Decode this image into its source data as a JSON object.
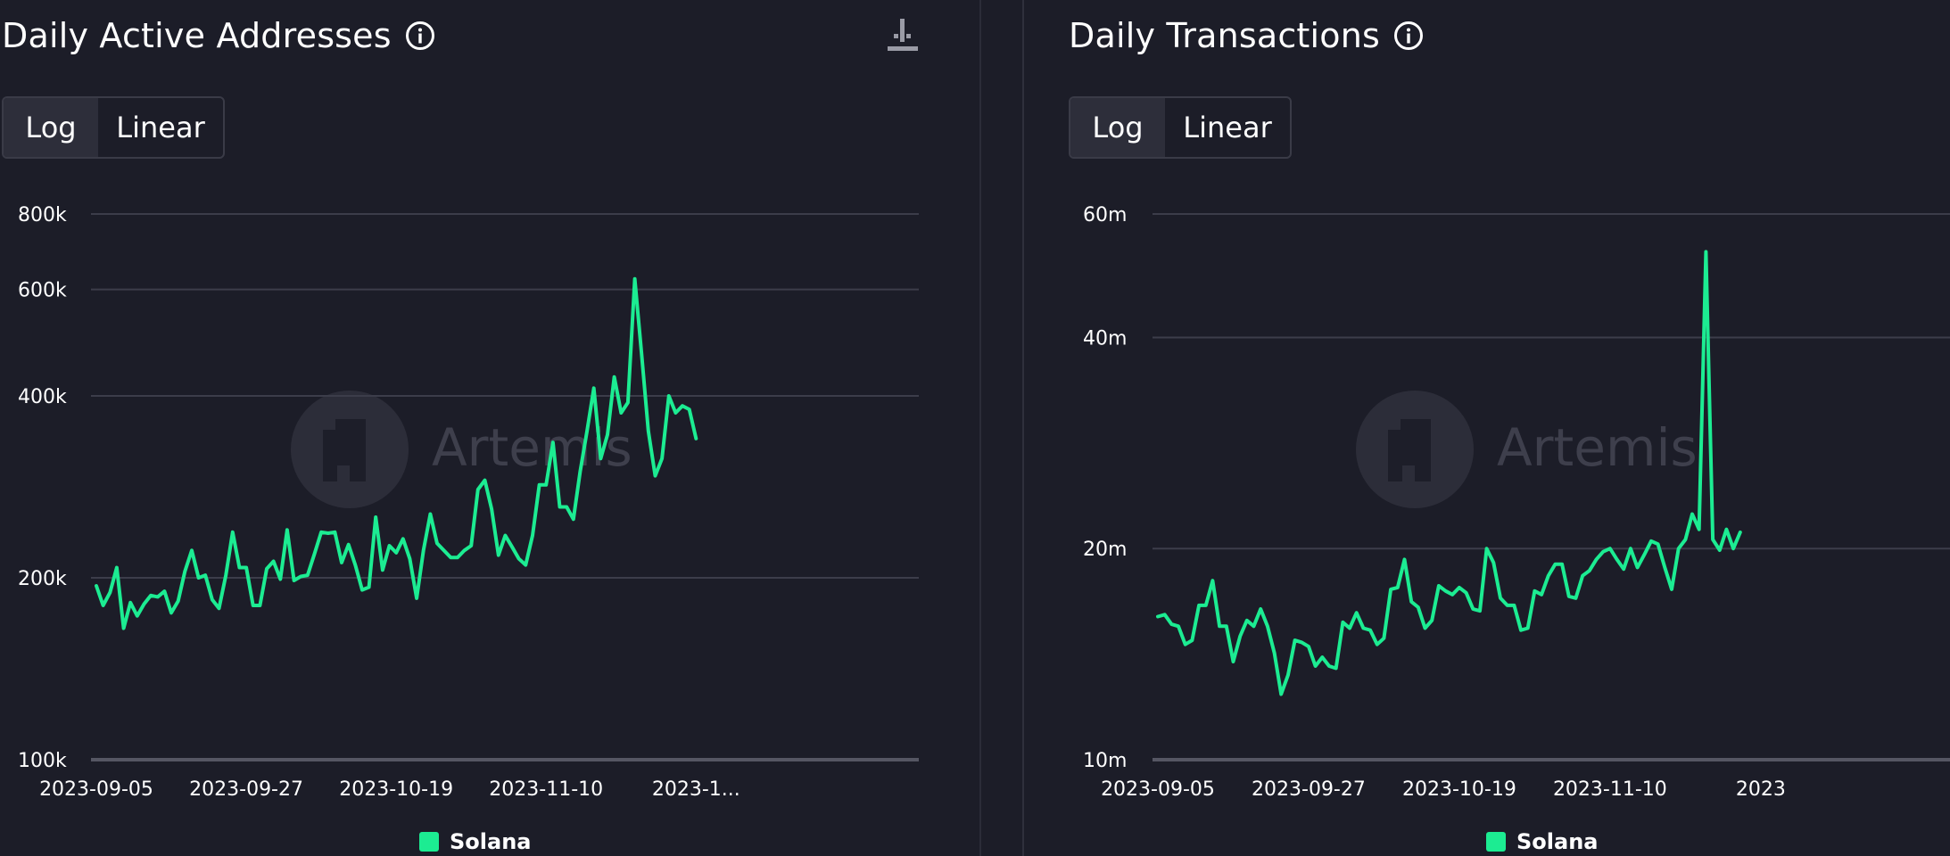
{
  "colors": {
    "background": "#1c1d28",
    "series": "#1cec92",
    "grid": "#3c3d4a",
    "axis": "#555663",
    "tick_text": "#ffffff",
    "watermark": "#4a4b58"
  },
  "icons": {
    "info": "info-circle-icon",
    "download": "download-icon"
  },
  "left": {
    "title": "Daily Active Addresses",
    "toggle": {
      "log": "Log",
      "linear": "Linear",
      "selected": "Log"
    },
    "watermark": "Artemis",
    "legend": "Solana"
  },
  "right": {
    "title": "Daily Transactions",
    "toggle": {
      "log": "Log",
      "linear": "Linear",
      "selected": "Log"
    },
    "watermark": "Artemis",
    "legend": "Solana"
  },
  "chart_data": [
    {
      "type": "line",
      "title": "Daily Active Addresses",
      "scale": "log",
      "grid": true,
      "legend_position": "bottom",
      "ylim": [
        100000,
        800000
      ],
      "y_ticks": [
        {
          "value": 800000,
          "label": "800k"
        },
        {
          "value": 600000,
          "label": "600k"
        },
        {
          "value": 400000,
          "label": "400k"
        },
        {
          "value": 200000,
          "label": "200k"
        },
        {
          "value": 100000,
          "label": "100k"
        }
      ],
      "x_ticks": [
        {
          "index": 0,
          "label": "2023-09-05"
        },
        {
          "index": 22,
          "label": "2023-09-27"
        },
        {
          "index": 44,
          "label": "2023-10-19"
        },
        {
          "index": 66,
          "label": "2023-11-10"
        },
        {
          "index": 88,
          "label": "2023-1..."
        }
      ],
      "series": [
        {
          "name": "Solana",
          "color": "#1cec92",
          "values": [
            194000,
            180000,
            189000,
            208000,
            165000,
            182000,
            173000,
            181000,
            187000,
            186000,
            190000,
            175000,
            183000,
            205000,
            222000,
            200000,
            202000,
            184000,
            178000,
            202000,
            238000,
            208000,
            208000,
            180000,
            180000,
            207000,
            213000,
            199000,
            240000,
            198000,
            201000,
            202000,
            219000,
            238000,
            237000,
            238000,
            212000,
            227000,
            210000,
            191000,
            193000,
            252000,
            206000,
            226000,
            220000,
            232000,
            215000,
            185000,
            222000,
            255000,
            228000,
            222000,
            216000,
            216000,
            222000,
            226000,
            280000,
            290000,
            260000,
            218000,
            235000,
            225000,
            215000,
            210000,
            235000,
            285000,
            285000,
            335000,
            262000,
            262000,
            250000,
            300000,
            350000,
            412000,
            315000,
            345000,
            430000,
            375000,
            390000,
            625000,
            470000,
            350000,
            295000,
            315000,
            400000,
            375000,
            385000,
            380000,
            340000
          ]
        }
      ]
    },
    {
      "type": "line",
      "title": "Daily Transactions",
      "scale": "log",
      "grid": true,
      "legend_position": "bottom",
      "ylim": [
        10000000,
        60000000
      ],
      "y_ticks": [
        {
          "value": 60000000,
          "label": "60m"
        },
        {
          "value": 40000000,
          "label": "40m"
        },
        {
          "value": 20000000,
          "label": "20m"
        },
        {
          "value": 10000000,
          "label": "10m"
        }
      ],
      "x_ticks": [
        {
          "index": 0,
          "label": "2023-09-05"
        },
        {
          "index": 22,
          "label": "2023-09-27"
        },
        {
          "index": 44,
          "label": "2023-10-19"
        },
        {
          "index": 66,
          "label": "2023-11-10"
        },
        {
          "index": 88,
          "label": "2023"
        }
      ],
      "series": [
        {
          "name": "Solana",
          "color": "#1cec92",
          "values": [
            16000000,
            16100000,
            15600000,
            15500000,
            14600000,
            14800000,
            16600000,
            16600000,
            18000000,
            15500000,
            15500000,
            13800000,
            15000000,
            15800000,
            15500000,
            16400000,
            15500000,
            14200000,
            12400000,
            13200000,
            14800000,
            14700000,
            14500000,
            13600000,
            14000000,
            13600000,
            13500000,
            15700000,
            15400000,
            16200000,
            15400000,
            15300000,
            14600000,
            14900000,
            17500000,
            17600000,
            19300000,
            16800000,
            16500000,
            15400000,
            15800000,
            17700000,
            17400000,
            17200000,
            17600000,
            17300000,
            16400000,
            16300000,
            20000000,
            19100000,
            17000000,
            16600000,
            16600000,
            15300000,
            15400000,
            17400000,
            17200000,
            18300000,
            19000000,
            19000000,
            17100000,
            17000000,
            18300000,
            18600000,
            19300000,
            19800000,
            20000000,
            19300000,
            18700000,
            20000000,
            18800000,
            19600000,
            20500000,
            20300000,
            18800000,
            17500000,
            20000000,
            20600000,
            22400000,
            21300000,
            53000000,
            20600000,
            19900000,
            21300000,
            20000000,
            21100000
          ]
        }
      ]
    }
  ]
}
